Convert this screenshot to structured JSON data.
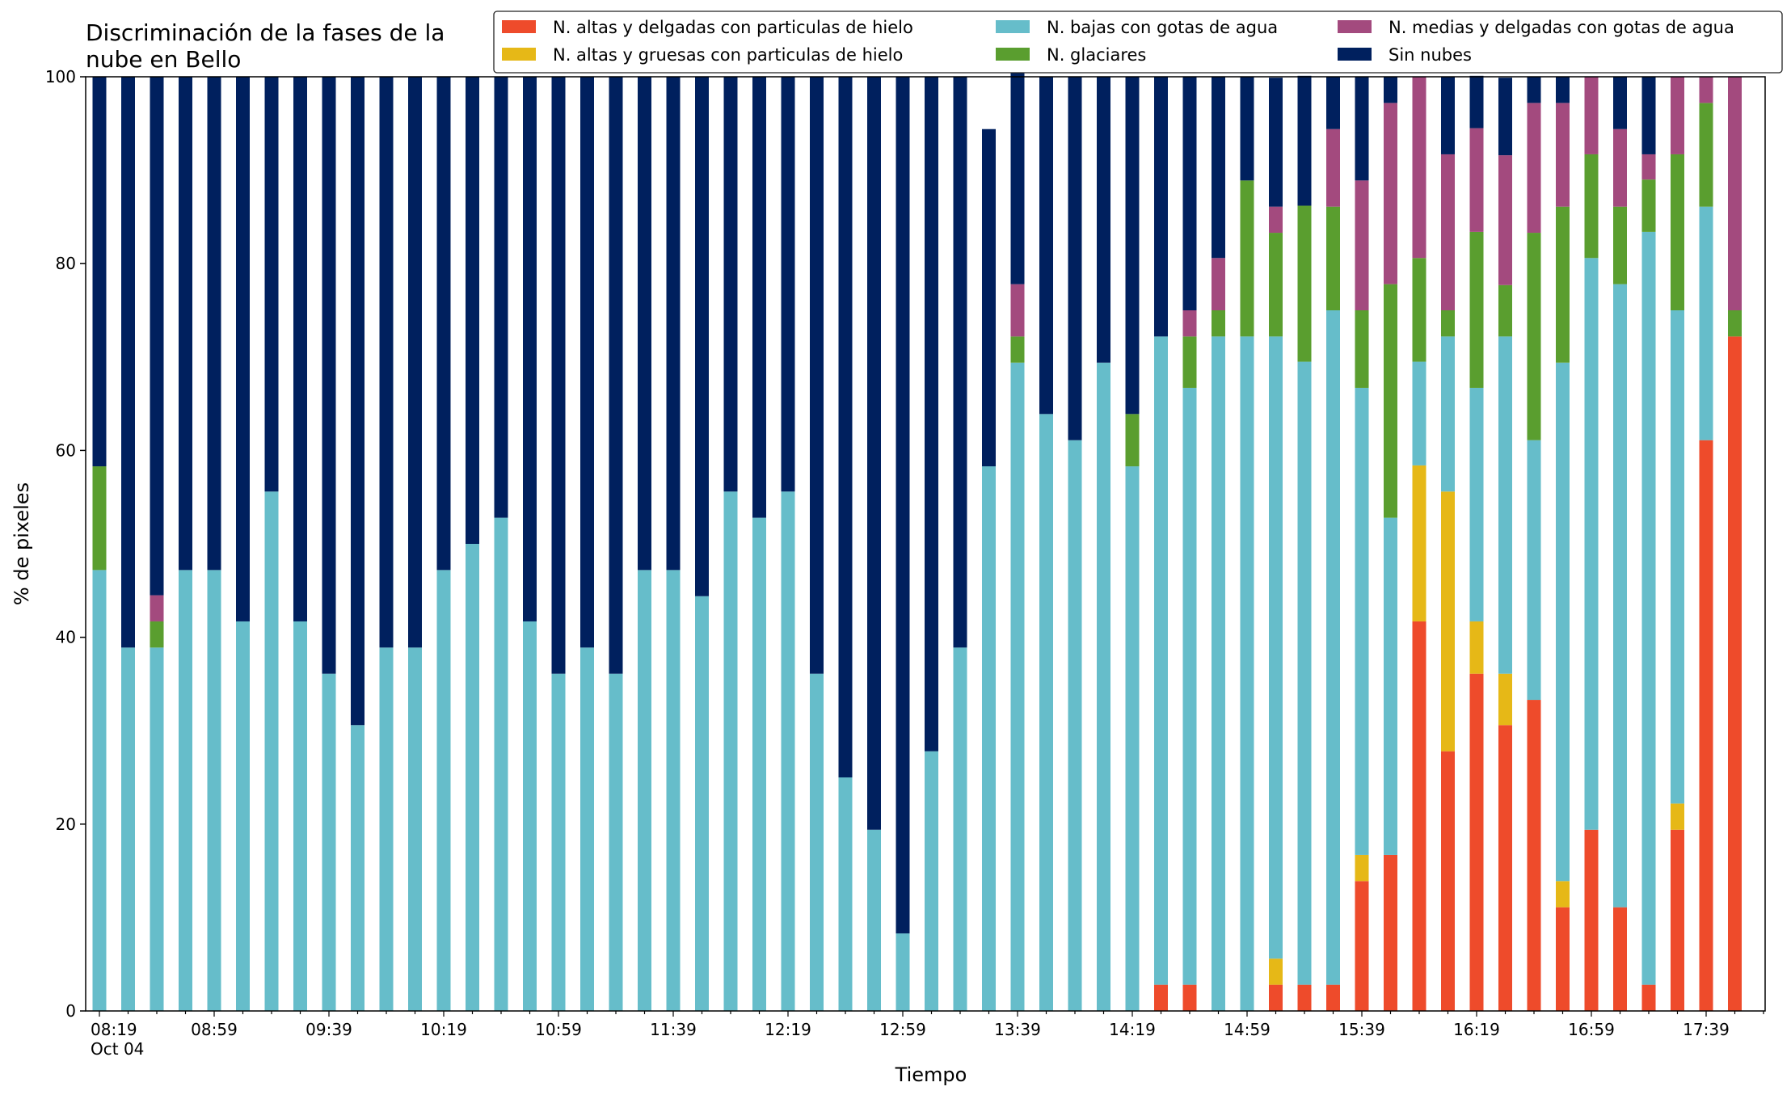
{
  "chart_data": {
    "type": "bar",
    "stacked": true,
    "title": "Discriminación de la fases de la\nnube en Bello",
    "xlabel": "Tiempo",
    "ylabel": "% de pixeles",
    "ylim": [
      0,
      100
    ],
    "yticks": [
      0,
      20,
      40,
      60,
      80,
      100
    ],
    "grid": false,
    "legend_position": "top-right",
    "categories": [
      "08:19",
      "08:29",
      "08:39",
      "08:49",
      "08:59",
      "09:09",
      "09:19",
      "09:29",
      "09:39",
      "09:49",
      "09:59",
      "10:09",
      "10:19",
      "10:29",
      "10:39",
      "10:49",
      "10:59",
      "11:09",
      "11:19",
      "11:29",
      "11:39",
      "11:49",
      "11:59",
      "12:09",
      "12:19",
      "12:29",
      "12:39",
      "12:49",
      "12:59",
      "13:09",
      "13:19",
      "13:29",
      "13:39",
      "13:49",
      "13:59",
      "14:09",
      "14:19",
      "14:29",
      "14:39",
      "14:49",
      "14:59",
      "15:09",
      "15:19",
      "15:29",
      "15:39",
      "15:49",
      "15:59",
      "16:09",
      "16:19",
      "16:29",
      "16:39",
      "16:49",
      "16:59",
      "17:09",
      "17:19",
      "17:29",
      "17:39",
      "17:49"
    ],
    "xticklabels": [
      {
        "index": 0,
        "label": "08:19",
        "sub": "Oct 04"
      },
      {
        "index": 4,
        "label": "08:59"
      },
      {
        "index": 8,
        "label": "09:39"
      },
      {
        "index": 12,
        "label": "10:19"
      },
      {
        "index": 16,
        "label": "10:59"
      },
      {
        "index": 20,
        "label": "11:39"
      },
      {
        "index": 24,
        "label": "12:19"
      },
      {
        "index": 28,
        "label": "12:59"
      },
      {
        "index": 32,
        "label": "13:39"
      },
      {
        "index": 36,
        "label": "14:19"
      },
      {
        "index": 40,
        "label": "14:59"
      },
      {
        "index": 44,
        "label": "15:39"
      },
      {
        "index": 48,
        "label": "16:19"
      },
      {
        "index": 52,
        "label": "16:59"
      },
      {
        "index": 56,
        "label": "17:39"
      }
    ],
    "series": [
      {
        "name": "N. altas y delgadas con particulas de hielo",
        "color": "#EE4B2B",
        "values": [
          0,
          0,
          0,
          0,
          0,
          0,
          0,
          0,
          0,
          0,
          0,
          0,
          0,
          0,
          0,
          0,
          0,
          0,
          0,
          0,
          0,
          0,
          0,
          0,
          0,
          0,
          0,
          0,
          0,
          0,
          0,
          0,
          0,
          0,
          0,
          0,
          0,
          2.8,
          2.8,
          0,
          0,
          2.8,
          2.8,
          2.8,
          13.9,
          16.7,
          41.7,
          27.8,
          36.1,
          30.6,
          33.3,
          11.1,
          19.4,
          11.1,
          2.8,
          19.4,
          61.1,
          72.2
        ]
      },
      {
        "name": "N. altas y gruesas con particulas de hielo",
        "color": "#E6B817",
        "values": [
          0,
          0,
          0,
          0,
          0,
          0,
          0,
          0,
          0,
          0,
          0,
          0,
          0,
          0,
          0,
          0,
          0,
          0,
          0,
          0,
          0,
          0,
          0,
          0,
          0,
          0,
          0,
          0,
          0,
          0,
          0,
          0,
          0,
          0,
          0,
          0,
          0,
          0,
          0,
          0,
          0,
          2.8,
          0,
          0,
          2.8,
          0,
          16.7,
          27.8,
          5.6,
          5.5,
          0,
          2.8,
          0,
          0,
          0,
          2.8,
          0,
          0
        ]
      },
      {
        "name": "N. bajas con gotas de agua",
        "color": "#66BDCA",
        "values": [
          47.2,
          38.9,
          38.9,
          47.2,
          47.2,
          41.7,
          55.6,
          41.7,
          36.1,
          30.6,
          38.9,
          38.9,
          47.2,
          50.0,
          52.8,
          41.7,
          36.1,
          38.9,
          36.1,
          47.2,
          47.2,
          44.4,
          55.6,
          52.8,
          55.6,
          36.1,
          25.0,
          19.4,
          8.3,
          27.8,
          38.9,
          58.3,
          69.4,
          63.9,
          61.1,
          69.4,
          58.3,
          69.4,
          63.9,
          72.2,
          72.2,
          66.6,
          66.7,
          72.2,
          50.0,
          36.1,
          11.1,
          16.6,
          25.0,
          36.1,
          27.8,
          55.5,
          61.2,
          66.7,
          80.6,
          52.8,
          25.0,
          0
        ]
      },
      {
        "name": "N. glaciares",
        "color": "#5A9E2F",
        "values": [
          11.1,
          0,
          2.8,
          0,
          0,
          0,
          0,
          0,
          0,
          0,
          0,
          0,
          0,
          0,
          0,
          0,
          0,
          0,
          0,
          0,
          0,
          0,
          0,
          0,
          0,
          0,
          0,
          0,
          0,
          0,
          0,
          0,
          2.8,
          0,
          0,
          0,
          5.6,
          0,
          5.5,
          2.8,
          16.7,
          11.1,
          16.7,
          11.1,
          8.3,
          25.0,
          11.1,
          2.8,
          16.7,
          5.5,
          22.2,
          16.7,
          11.1,
          8.3,
          5.6,
          16.7,
          11.1,
          2.8
        ]
      },
      {
        "name": "N. medias y delgadas con gotas de agua",
        "color": "#A34A7E",
        "values": [
          0,
          0,
          2.8,
          0,
          0,
          0,
          0,
          0,
          0,
          0,
          0,
          0,
          0,
          0,
          0,
          0,
          0,
          0,
          0,
          0,
          0,
          0,
          0,
          0,
          0,
          0,
          0,
          0,
          0,
          0,
          0,
          0,
          5.6,
          0,
          0,
          0,
          0,
          0,
          2.8,
          5.6,
          0,
          2.8,
          0,
          8.3,
          13.9,
          19.4,
          19.4,
          16.7,
          11.1,
          13.9,
          13.9,
          11.1,
          8.3,
          8.3,
          2.7,
          8.3,
          2.8,
          25.0
        ]
      },
      {
        "name": "Sin nubes",
        "color": "#00205E",
        "values": [
          41.7,
          61.1,
          55.5,
          52.8,
          52.8,
          58.3,
          44.4,
          58.3,
          63.9,
          69.4,
          61.1,
          61.1,
          52.8,
          50.0,
          47.2,
          58.3,
          63.9,
          61.1,
          63.9,
          52.8,
          52.8,
          55.6,
          44.4,
          47.2,
          44.4,
          63.9,
          75.0,
          80.6,
          91.7,
          72.2,
          61.1,
          36.1,
          27.8,
          36.1,
          38.9,
          30.6,
          36.1,
          27.8,
          25.0,
          19.4,
          11.1,
          13.8,
          13.9,
          5.6,
          11.1,
          2.8,
          0,
          8.3,
          5.6,
          8.3,
          2.8,
          2.8,
          0,
          5.6,
          8.3,
          0,
          0,
          0
        ]
      }
    ]
  }
}
